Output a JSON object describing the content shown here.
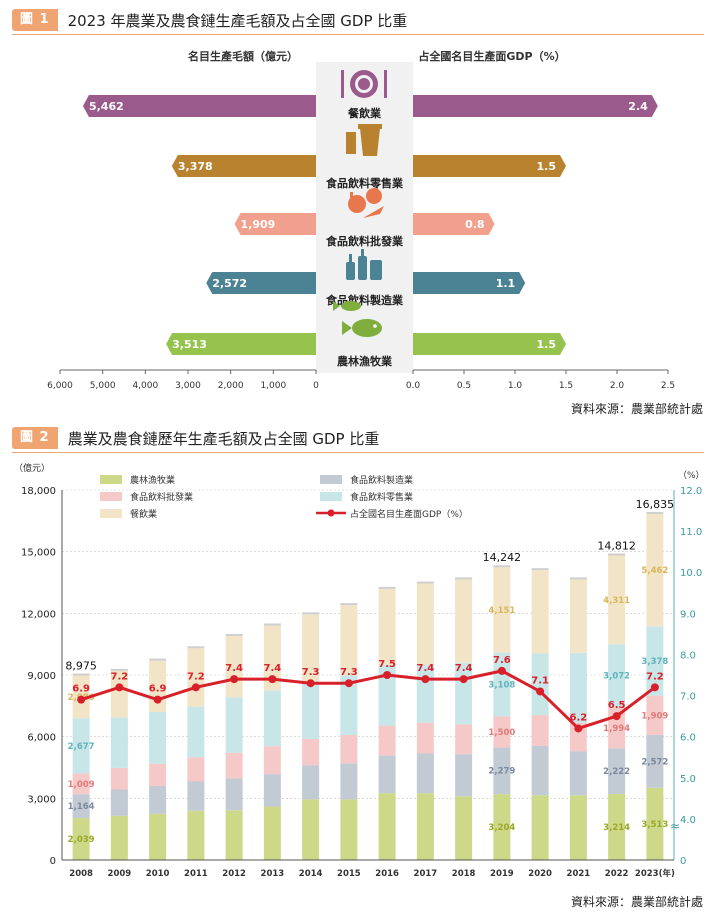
{
  "figure1": {
    "badge": "圖 1",
    "title": "2023 年農業及農食鏈生產毛額及占全國 GDP 比重",
    "left_axis_title": "名目生產毛額（億元）",
    "right_axis_title": "占全國名目生產面GDP（%）",
    "source": "資料來源：農業部統計處",
    "chart_data": {
      "type": "bar",
      "categories": [
        "餐飲業",
        "食品飲料零售業",
        "食品飲料批發業",
        "食品飲料製造業",
        "農林漁牧業"
      ],
      "series": [
        {
          "name": "名目生產毛額（億元）",
          "values": [
            5462,
            3378,
            1909,
            2572,
            3513
          ],
          "labels": [
            "5,462",
            "3,378",
            "1,909",
            "2,572",
            "3,513"
          ]
        },
        {
          "name": "占全國名目生產面GDP（%）",
          "values": [
            2.4,
            1.5,
            0.8,
            1.1,
            1.5
          ],
          "labels": [
            "2.4",
            "1.5",
            "0.8",
            "1.1",
            "1.5"
          ]
        }
      ],
      "colors": [
        "#9a5b8c",
        "#b8822e",
        "#f2a08e",
        "#4b8294",
        "#96c34e"
      ],
      "left_xlim": [
        0,
        6000
      ],
      "left_ticks": [
        "6,000",
        "5,000",
        "4,000",
        "3,000",
        "2,000",
        "1,000",
        "0"
      ],
      "left_tick_values": [
        6000,
        5000,
        4000,
        3000,
        2000,
        1000,
        0
      ],
      "right_xlim": [
        0,
        2.5
      ],
      "right_ticks": [
        "0.0",
        "0.5",
        "1.0",
        "1.5",
        "2.0",
        "2.5"
      ],
      "right_tick_values": [
        0,
        0.5,
        1.0,
        1.5,
        2.0,
        2.5
      ],
      "icons": [
        "dining-icon",
        "drink-cup-icon",
        "vegetables-icon",
        "bottles-icon",
        "fish-icon"
      ]
    }
  },
  "figure2": {
    "badge": "圖 2",
    "title": "農業及農食鏈歷年生產毛額及占全國 GDP 比重",
    "left_unit": "（億元）",
    "right_unit": "（%）",
    "source": "資料來源：農業部統計處",
    "chart_data": {
      "type": "bar",
      "stacked": true,
      "categories": [
        "2008",
        "2009",
        "2010",
        "2011",
        "2012",
        "2013",
        "2014",
        "2015",
        "2016",
        "2017",
        "2018",
        "2019",
        "2020",
        "2021",
        "2022",
        "2023(年)"
      ],
      "series": [
        {
          "name": "農林漁牧業",
          "color": "#cdd888",
          "values": [
            2039,
            2150,
            2250,
            2400,
            2420,
            2600,
            2950,
            2950,
            3250,
            3250,
            3100,
            3204,
            3150,
            3150,
            3214,
            3513
          ]
        },
        {
          "name": "食品飲料製造業",
          "color": "#c2cad4",
          "values": [
            1164,
            1280,
            1350,
            1420,
            1550,
            1580,
            1660,
            1750,
            1830,
            1930,
            2050,
            2279,
            2400,
            2130,
            2222,
            2572
          ]
        },
        {
          "name": "食品飲料批發業",
          "color": "#f6c9c9",
          "values": [
            1009,
            1050,
            1080,
            1180,
            1250,
            1360,
            1280,
            1380,
            1460,
            1500,
            1450,
            1500,
            1500,
            1400,
            1994,
            1909
          ]
        },
        {
          "name": "食品飲料零售業",
          "color": "#c8e5e8",
          "values": [
            2677,
            2450,
            2520,
            2460,
            2700,
            2710,
            2800,
            2900,
            2950,
            2800,
            3000,
            3108,
            3000,
            3400,
            3072,
            3378
          ]
        },
        {
          "name": "餐飲業",
          "color": "#f2e4c6",
          "values": [
            2086,
            2270,
            2500,
            2840,
            2980,
            3160,
            3260,
            3420,
            3700,
            3970,
            4050,
            4151,
            4050,
            3570,
            4311,
            5462
          ]
        }
      ],
      "labeled_values": {
        "2008": {
          "農林漁牧業": "2,039",
          "食品飲料製造業": "1,164",
          "食品飲料批發業": "1,009",
          "食品飲料零售業": "2,677",
          "餐飲業": "2,086"
        },
        "2019": {
          "農林漁牧業": "3,204",
          "食品飲料製造業": "2,279",
          "食品飲料批發業": "1,500",
          "食品飲料零售業": "3,108",
          "餐飲業": "4,151"
        },
        "2022": {
          "農林漁牧業": "3,214",
          "食品飲料製造業": "2,222",
          "食品飲料批發業": "1,994",
          "食品飲料零售業": "3,072",
          "餐飲業": "4,311"
        },
        "2023(年)": {
          "農林漁牧業": "3,513",
          "食品飲料製造業": "2,572",
          "食品飲料批發業": "1,909",
          "食品飲料零售業": "3,378",
          "餐飲業": "5,462"
        }
      },
      "totals": {
        "2008": "8,975",
        "2019": "14,242",
        "2022": "14,812",
        "2023(年)": "16,835"
      },
      "line": {
        "name": "占全國名目生產面GDP（%）",
        "color": "#d8202a",
        "values": [
          6.9,
          7.2,
          6.9,
          7.2,
          7.4,
          7.4,
          7.3,
          7.3,
          7.5,
          7.4,
          7.4,
          7.6,
          7.1,
          6.2,
          6.5,
          7.2
        ],
        "labels": [
          "6.9",
          "7.2",
          "6.9",
          "7.2",
          "7.4",
          "7.4",
          "7.3",
          "7.3",
          "7.5",
          "7.4",
          "7.4",
          "7.6",
          "7.1",
          "6.2",
          "6.5",
          "7.2"
        ]
      },
      "left_ylim": [
        0,
        18000
      ],
      "left_ticks": [
        "0",
        "3,000",
        "6,000",
        "9,000",
        "12,000",
        "15,000",
        "18,000"
      ],
      "left_tick_values": [
        0,
        3000,
        6000,
        9000,
        12000,
        15000,
        18000
      ],
      "right_ylim": [
        3.0,
        12.0
      ],
      "right_ticks": [
        "0",
        "4.0",
        "5.0",
        "6.0",
        "7.0",
        "8.0",
        "9.0",
        "10.0",
        "11.0",
        "12.0"
      ],
      "right_tick_values": [
        3.0,
        4.0,
        5.0,
        6.0,
        7.0,
        8.0,
        9.0,
        10.0,
        11.0,
        12.0
      ],
      "axis_break_mark": "≈",
      "legend": [
        "農林漁牧業",
        "食品飲料製造業",
        "食品飲料批發業",
        "食品飲料零售業",
        "餐飲業",
        "占全國名目生產面GDP（%）"
      ]
    }
  }
}
